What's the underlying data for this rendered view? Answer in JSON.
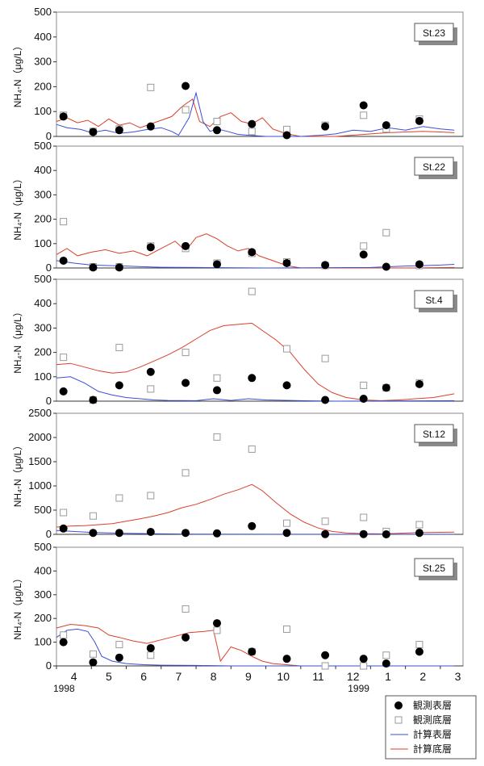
{
  "x_axis": {
    "months": [
      "4",
      "5",
      "6",
      "7",
      "8",
      "9",
      "10",
      "11",
      "12",
      "1",
      "2",
      "3"
    ],
    "years": [
      "1998",
      "1999"
    ]
  },
  "legend": {
    "obs_surface": "観測表層",
    "obs_bottom": "観測底層",
    "calc_surface": "計算表層",
    "calc_bottom": "計算底層"
  },
  "colors": {
    "calc_surface": "#3a4fd6",
    "calc_bottom": "#d8412a",
    "obs_bottom_stroke": "#9a9a9a",
    "obs_surface": "#000000",
    "frame": "#888888"
  },
  "chart_data": [
    {
      "type": "scatter",
      "station": "St.23",
      "ylabel": "NH₄-N（μg/L）",
      "ylim": [
        0,
        500
      ],
      "yticks": [
        0,
        100,
        200,
        300,
        400,
        500
      ],
      "obs_surface": [
        [
          0.2,
          80
        ],
        [
          1.05,
          18
        ],
        [
          1.8,
          25
        ],
        [
          2.7,
          40
        ],
        [
          3.7,
          203
        ],
        [
          4.6,
          25
        ],
        [
          5.6,
          50
        ],
        [
          6.6,
          5
        ],
        [
          7.7,
          40
        ],
        [
          8.8,
          125
        ],
        [
          9.45,
          45
        ],
        [
          10.4,
          62
        ]
      ],
      "obs_bottom": [
        [
          0.2,
          85
        ],
        [
          1.05,
          20
        ],
        [
          1.8,
          30
        ],
        [
          2.7,
          197
        ],
        [
          3.7,
          107
        ],
        [
          4.6,
          60
        ],
        [
          5.6,
          20
        ],
        [
          6.6,
          28
        ],
        [
          7.7,
          45
        ],
        [
          8.8,
          85
        ],
        [
          9.45,
          30
        ],
        [
          10.4,
          70
        ]
      ],
      "calc_surface": [
        [
          0,
          48
        ],
        [
          0.3,
          35
        ],
        [
          0.7,
          28
        ],
        [
          1.0,
          15
        ],
        [
          1.4,
          25
        ],
        [
          1.8,
          12
        ],
        [
          2.2,
          18
        ],
        [
          2.6,
          28
        ],
        [
          3.0,
          35
        ],
        [
          3.3,
          20
        ],
        [
          3.5,
          5
        ],
        [
          3.8,
          75
        ],
        [
          4.0,
          175
        ],
        [
          4.2,
          60
        ],
        [
          4.4,
          20
        ],
        [
          4.6,
          30
        ],
        [
          4.9,
          20
        ],
        [
          5.2,
          8
        ],
        [
          5.5,
          5
        ],
        [
          6.0,
          0
        ],
        [
          7.0,
          0
        ],
        [
          7.6,
          5
        ],
        [
          8.0,
          10
        ],
        [
          8.5,
          25
        ],
        [
          9.0,
          20
        ],
        [
          9.5,
          35
        ],
        [
          10.0,
          25
        ],
        [
          10.5,
          40
        ],
        [
          11.0,
          30
        ],
        [
          11.4,
          25
        ]
      ],
      "calc_bottom": [
        [
          0,
          60
        ],
        [
          0.3,
          75
        ],
        [
          0.6,
          55
        ],
        [
          0.9,
          65
        ],
        [
          1.2,
          40
        ],
        [
          1.5,
          70
        ],
        [
          1.8,
          45
        ],
        [
          2.1,
          55
        ],
        [
          2.4,
          35
        ],
        [
          2.7,
          50
        ],
        [
          3.0,
          65
        ],
        [
          3.3,
          80
        ],
        [
          3.6,
          120
        ],
        [
          3.9,
          150
        ],
        [
          4.1,
          60
        ],
        [
          4.4,
          40
        ],
        [
          4.7,
          80
        ],
        [
          5.0,
          95
        ],
        [
          5.3,
          60
        ],
        [
          5.6,
          50
        ],
        [
          5.9,
          75
        ],
        [
          6.2,
          30
        ],
        [
          6.5,
          15
        ],
        [
          6.8,
          5
        ],
        [
          7.0,
          0
        ],
        [
          8.0,
          0
        ],
        [
          8.5,
          5
        ],
        [
          9.0,
          10
        ],
        [
          9.5,
          15
        ],
        [
          10.0,
          18
        ],
        [
          10.5,
          20
        ],
        [
          11.0,
          18
        ],
        [
          11.4,
          15
        ]
      ]
    },
    {
      "type": "scatter",
      "station": "St.22",
      "ylabel": "NH₄-N（μg/L）",
      "ylim": [
        0,
        500
      ],
      "yticks": [
        0,
        100,
        200,
        300,
        400,
        500
      ],
      "obs_surface": [
        [
          0.2,
          30
        ],
        [
          1.05,
          2
        ],
        [
          1.8,
          2
        ],
        [
          2.7,
          85
        ],
        [
          3.7,
          90
        ],
        [
          4.6,
          15
        ],
        [
          5.6,
          65
        ],
        [
          6.6,
          20
        ],
        [
          7.7,
          12
        ],
        [
          8.8,
          55
        ],
        [
          9.45,
          5
        ],
        [
          10.4,
          15
        ]
      ],
      "obs_bottom": [
        [
          0.2,
          190
        ],
        [
          1.05,
          5
        ],
        [
          1.8,
          5
        ],
        [
          2.7,
          90
        ],
        [
          3.7,
          80
        ],
        [
          4.6,
          20
        ],
        [
          5.6,
          60
        ],
        [
          6.6,
          25
        ],
        [
          7.7,
          10
        ],
        [
          8.8,
          90
        ],
        [
          9.45,
          145
        ],
        [
          10.4,
          10
        ]
      ],
      "calc_surface": [
        [
          0,
          30
        ],
        [
          0.5,
          20
        ],
        [
          1.0,
          12
        ],
        [
          1.5,
          10
        ],
        [
          2.0,
          8
        ],
        [
          2.5,
          5
        ],
        [
          3.0,
          3
        ],
        [
          4.0,
          2
        ],
        [
          6.0,
          0
        ],
        [
          9.0,
          2
        ],
        [
          10.0,
          8
        ],
        [
          11.0,
          12
        ],
        [
          11.4,
          15
        ]
      ],
      "calc_bottom": [
        [
          0,
          55
        ],
        [
          0.3,
          80
        ],
        [
          0.6,
          50
        ],
        [
          1.0,
          65
        ],
        [
          1.4,
          75
        ],
        [
          1.8,
          60
        ],
        [
          2.2,
          70
        ],
        [
          2.6,
          50
        ],
        [
          3.0,
          80
        ],
        [
          3.4,
          110
        ],
        [
          3.7,
          70
        ],
        [
          4.0,
          125
        ],
        [
          4.3,
          140
        ],
        [
          4.6,
          120
        ],
        [
          4.9,
          90
        ],
        [
          5.2,
          70
        ],
        [
          5.5,
          80
        ],
        [
          5.8,
          50
        ],
        [
          6.2,
          30
        ],
        [
          6.6,
          10
        ],
        [
          7.0,
          0
        ],
        [
          8.0,
          0
        ],
        [
          9.0,
          0
        ],
        [
          10.0,
          0
        ],
        [
          11.4,
          2
        ]
      ]
    },
    {
      "type": "scatter",
      "station": "St.4",
      "ylabel": "NH₄-N（μg/L）",
      "ylim": [
        0,
        500
      ],
      "yticks": [
        0,
        100,
        200,
        300,
        400,
        500
      ],
      "obs_surface": [
        [
          0.2,
          40
        ],
        [
          1.05,
          5
        ],
        [
          1.8,
          65
        ],
        [
          2.7,
          120
        ],
        [
          3.7,
          75
        ],
        [
          4.6,
          45
        ],
        [
          5.6,
          95
        ],
        [
          6.6,
          65
        ],
        [
          7.7,
          5
        ],
        [
          8.8,
          10
        ],
        [
          9.45,
          55
        ],
        [
          10.4,
          70
        ]
      ],
      "obs_bottom": [
        [
          0.2,
          180
        ],
        [
          1.05,
          5
        ],
        [
          1.8,
          220
        ],
        [
          2.7,
          50
        ],
        [
          3.7,
          200
        ],
        [
          4.6,
          95
        ],
        [
          5.6,
          450
        ],
        [
          6.6,
          215
        ],
        [
          7.7,
          175
        ],
        [
          8.8,
          65
        ],
        [
          9.45,
          55
        ],
        [
          10.4,
          75
        ]
      ],
      "calc_surface": [
        [
          0,
          95
        ],
        [
          0.4,
          100
        ],
        [
          0.8,
          75
        ],
        [
          1.2,
          40
        ],
        [
          1.6,
          25
        ],
        [
          2.0,
          15
        ],
        [
          2.4,
          10
        ],
        [
          2.8,
          5
        ],
        [
          3.2,
          3
        ],
        [
          4.0,
          2
        ],
        [
          4.5,
          10
        ],
        [
          5.0,
          3
        ],
        [
          5.5,
          10
        ],
        [
          6.0,
          5
        ],
        [
          7.0,
          2
        ],
        [
          8.0,
          0
        ],
        [
          11.4,
          2
        ]
      ],
      "calc_bottom": [
        [
          0,
          150
        ],
        [
          0.4,
          155
        ],
        [
          0.8,
          140
        ],
        [
          1.2,
          125
        ],
        [
          1.6,
          115
        ],
        [
          2.0,
          120
        ],
        [
          2.4,
          140
        ],
        [
          2.8,
          165
        ],
        [
          3.2,
          190
        ],
        [
          3.6,
          220
        ],
        [
          4.0,
          255
        ],
        [
          4.4,
          290
        ],
        [
          4.8,
          310
        ],
        [
          5.2,
          315
        ],
        [
          5.6,
          320
        ],
        [
          5.9,
          290
        ],
        [
          6.3,
          250
        ],
        [
          6.7,
          200
        ],
        [
          7.1,
          130
        ],
        [
          7.5,
          70
        ],
        [
          7.9,
          35
        ],
        [
          8.3,
          15
        ],
        [
          8.8,
          5
        ],
        [
          9.3,
          2
        ],
        [
          9.8,
          5
        ],
        [
          10.3,
          10
        ],
        [
          10.8,
          15
        ],
        [
          11.4,
          30
        ]
      ]
    },
    {
      "type": "scatter",
      "station": "St.12",
      "ylabel": "NH₄-N（μg/L）",
      "ylim": [
        0,
        2500
      ],
      "yticks": [
        0,
        500,
        1000,
        1500,
        2000,
        2500
      ],
      "obs_surface": [
        [
          0.2,
          120
        ],
        [
          1.05,
          30
        ],
        [
          1.8,
          30
        ],
        [
          2.7,
          50
        ],
        [
          3.7,
          30
        ],
        [
          4.6,
          20
        ],
        [
          5.6,
          170
        ],
        [
          6.6,
          30
        ],
        [
          7.7,
          5
        ],
        [
          8.8,
          5
        ],
        [
          9.45,
          0
        ],
        [
          10.4,
          30
        ]
      ],
      "obs_bottom": [
        [
          0.2,
          450
        ],
        [
          1.05,
          380
        ],
        [
          1.8,
          750
        ],
        [
          2.7,
          800
        ],
        [
          3.7,
          1270
        ],
        [
          4.6,
          2010
        ],
        [
          5.6,
          1760
        ],
        [
          6.6,
          230
        ],
        [
          7.7,
          270
        ],
        [
          8.8,
          350
        ],
        [
          9.45,
          60
        ],
        [
          10.4,
          200
        ]
      ],
      "calc_surface": [
        [
          0,
          80
        ],
        [
          1.0,
          40
        ],
        [
          2.0,
          20
        ],
        [
          3.0,
          10
        ],
        [
          4.0,
          5
        ],
        [
          6.0,
          2
        ],
        [
          11.4,
          2
        ]
      ],
      "calc_bottom": [
        [
          0,
          150
        ],
        [
          0.4,
          170
        ],
        [
          0.8,
          180
        ],
        [
          1.2,
          200
        ],
        [
          1.6,
          220
        ],
        [
          2.0,
          270
        ],
        [
          2.4,
          320
        ],
        [
          2.8,
          380
        ],
        [
          3.2,
          450
        ],
        [
          3.6,
          550
        ],
        [
          4.0,
          620
        ],
        [
          4.4,
          720
        ],
        [
          4.8,
          830
        ],
        [
          5.2,
          920
        ],
        [
          5.6,
          1030
        ],
        [
          5.9,
          900
        ],
        [
          6.3,
          650
        ],
        [
          6.7,
          420
        ],
        [
          7.1,
          250
        ],
        [
          7.5,
          130
        ],
        [
          7.9,
          60
        ],
        [
          8.3,
          30
        ],
        [
          8.8,
          15
        ],
        [
          9.3,
          10
        ],
        [
          9.8,
          20
        ],
        [
          10.3,
          35
        ],
        [
          10.8,
          40
        ],
        [
          11.4,
          45
        ]
      ]
    },
    {
      "type": "scatter",
      "station": "St.25",
      "ylabel": "NH₄-N（μg/L）",
      "ylim": [
        0,
        500
      ],
      "yticks": [
        0,
        100,
        200,
        300,
        400,
        500
      ],
      "obs_surface": [
        [
          0.2,
          100
        ],
        [
          1.05,
          15
        ],
        [
          1.8,
          35
        ],
        [
          2.7,
          75
        ],
        [
          3.7,
          120
        ],
        [
          4.6,
          180
        ],
        [
          5.6,
          60
        ],
        [
          6.6,
          30
        ],
        [
          7.7,
          45
        ],
        [
          8.8,
          30
        ],
        [
          9.45,
          10
        ],
        [
          10.4,
          60
        ]
      ],
      "obs_bottom": [
        [
          0.2,
          130
        ],
        [
          1.05,
          50
        ],
        [
          1.8,
          90
        ],
        [
          2.7,
          45
        ],
        [
          3.7,
          240
        ],
        [
          4.6,
          150
        ],
        [
          5.6,
          60
        ],
        [
          6.6,
          155
        ],
        [
          7.7,
          0
        ],
        [
          8.8,
          0
        ],
        [
          9.45,
          45
        ],
        [
          10.4,
          90
        ]
      ],
      "calc_surface": [
        [
          0,
          120
        ],
        [
          0.3,
          150
        ],
        [
          0.6,
          155
        ],
        [
          0.9,
          145
        ],
        [
          1.1,
          100
        ],
        [
          1.3,
          40
        ],
        [
          1.6,
          20
        ],
        [
          2.0,
          10
        ],
        [
          2.5,
          5
        ],
        [
          3.0,
          3
        ],
        [
          4.0,
          2
        ],
        [
          5.0,
          0
        ],
        [
          11.4,
          0
        ]
      ],
      "calc_bottom": [
        [
          0,
          160
        ],
        [
          0.4,
          175
        ],
        [
          0.8,
          170
        ],
        [
          1.2,
          160
        ],
        [
          1.5,
          130
        ],
        [
          1.8,
          120
        ],
        [
          2.2,
          105
        ],
        [
          2.6,
          95
        ],
        [
          3.0,
          110
        ],
        [
          3.4,
          125
        ],
        [
          3.8,
          140
        ],
        [
          4.2,
          145
        ],
        [
          4.5,
          150
        ],
        [
          4.7,
          20
        ],
        [
          5.0,
          80
        ],
        [
          5.3,
          65
        ],
        [
          5.6,
          40
        ],
        [
          5.9,
          20
        ],
        [
          6.2,
          10
        ],
        [
          7.0,
          0
        ],
        [
          11.4,
          0
        ]
      ]
    }
  ]
}
